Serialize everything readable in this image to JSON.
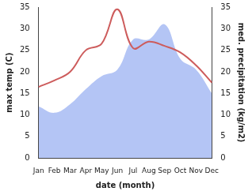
{
  "chart_data": {
    "type": "line",
    "categories": [
      "Jan",
      "Feb",
      "Mar",
      "Apr",
      "May",
      "Jun",
      "Jul",
      "Aug",
      "Sep",
      "Oct",
      "Nov",
      "Dec"
    ],
    "x_label": "date (month)",
    "y_label": "max temp (C)",
    "y2_label": "med. precipitation (kg/m2)",
    "ylim": [
      0,
      35
    ],
    "yticks": [
      0,
      5,
      10,
      15,
      20,
      25,
      30,
      35
    ],
    "y2lim": [
      0,
      35
    ],
    "y2ticks": [
      0,
      5,
      10,
      15,
      20,
      25,
      30,
      35
    ],
    "grid": false,
    "series": [
      {
        "type": "line",
        "color": "#cd5c5c",
        "axis": "y",
        "values": [
          16.5,
          18,
          20,
          25,
          26.5,
          34.5,
          25.5,
          27,
          26,
          24.5,
          21.5,
          17.5
        ]
      },
      {
        "type": "area",
        "color": "#b4c5f5",
        "axis": "y2",
        "values": [
          12,
          10.5,
          12.5,
          16,
          19,
          20.5,
          27.5,
          27.5,
          31,
          23,
          20.5,
          15
        ]
      }
    ]
  }
}
